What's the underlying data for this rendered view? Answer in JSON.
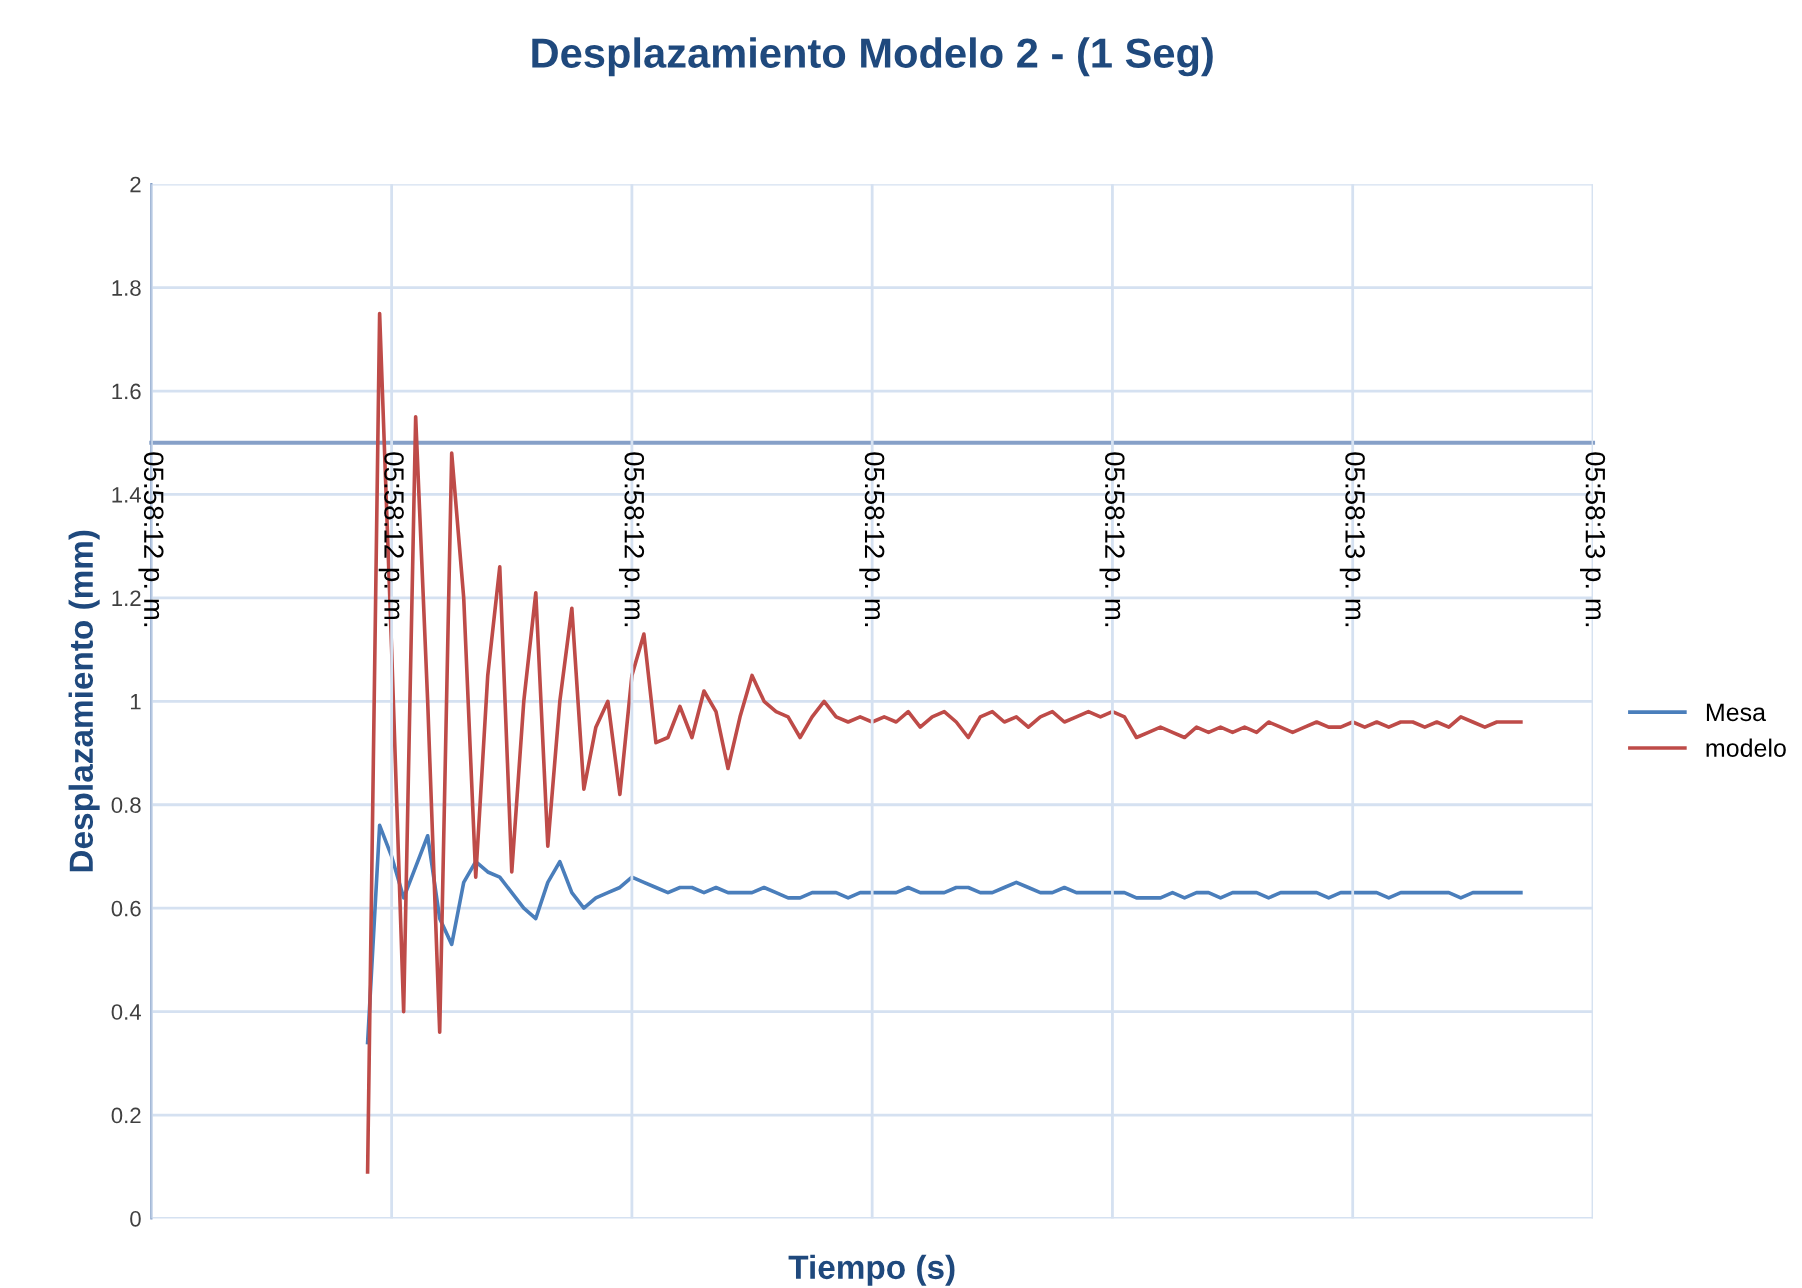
{
  "chart_data": {
    "type": "line",
    "title": "Desplazamiento Modelo 2 - (1 Seg)",
    "xlabel": "Tiempo (s)",
    "ylabel": "Desplazamiento (mm)",
    "categories": [
      "05:58:12 p. m.",
      null,
      null,
      null,
      null,
      null,
      null,
      null,
      null,
      null,
      null,
      null,
      null,
      null,
      null,
      null,
      null,
      null,
      null,
      null,
      "05:58:12 p. m.",
      null,
      null,
      null,
      null,
      null,
      null,
      null,
      null,
      null,
      null,
      null,
      null,
      null,
      null,
      null,
      null,
      null,
      null,
      null,
      "05:58:12 p. m.",
      null,
      null,
      null,
      null,
      null,
      null,
      null,
      null,
      null,
      null,
      null,
      null,
      null,
      null,
      null,
      null,
      null,
      null,
      null,
      "05:58:12 p. m.",
      null,
      null,
      null,
      null,
      null,
      null,
      null,
      null,
      null,
      null,
      null,
      null,
      null,
      null,
      null,
      null,
      null,
      null,
      null,
      "05:58:12 p. m.",
      null,
      null,
      null,
      null,
      null,
      null,
      null,
      null,
      null,
      null,
      null,
      null,
      null,
      null,
      null,
      null,
      null,
      null,
      null,
      "05:58:13 p. m.",
      null,
      null,
      null,
      null,
      null,
      null,
      null,
      null,
      null,
      null,
      null,
      null,
      null,
      null,
      null,
      null,
      null,
      null,
      null,
      "05:58:13 p. m."
    ],
    "ylim": [
      0,
      2
    ],
    "yticks": [
      0,
      0.2,
      0.4,
      0.6,
      0.8,
      1,
      1.2,
      1.4,
      1.6,
      1.8,
      2
    ],
    "grid": true,
    "legend": "right",
    "marker": "none",
    "line_style": "solid",
    "series": [
      {
        "name": "Mesa",
        "color": "#4a7ebb",
        "values": [
          null,
          null,
          null,
          null,
          null,
          null,
          null,
          null,
          null,
          null,
          null,
          null,
          null,
          null,
          null,
          null,
          null,
          null,
          0.34,
          0.76,
          0.7,
          0.62,
          0.68,
          0.74,
          0.58,
          0.53,
          0.65,
          0.69,
          0.67,
          0.66,
          0.63,
          0.6,
          0.58,
          0.65,
          0.69,
          0.63,
          0.6,
          0.62,
          0.63,
          0.64,
          0.66,
          0.65,
          0.64,
          0.63,
          0.64,
          0.64,
          0.63,
          0.64,
          0.63,
          0.63,
          0.63,
          0.64,
          0.63,
          0.62,
          0.62,
          0.63,
          0.63,
          0.63,
          0.62,
          0.63,
          0.63,
          0.63,
          0.63,
          0.64,
          0.63,
          0.63,
          0.63,
          0.64,
          0.64,
          0.63,
          0.63,
          0.64,
          0.65,
          0.64,
          0.63,
          0.63,
          0.64,
          0.63,
          0.63,
          0.63,
          0.63,
          0.63,
          0.62,
          0.62,
          0.62,
          0.63,
          0.62,
          0.63,
          0.63,
          0.62,
          0.63,
          0.63,
          0.63,
          0.62,
          0.63,
          0.63,
          0.63,
          0.63,
          0.62,
          0.63,
          0.63,
          0.63,
          0.63,
          0.62,
          0.63,
          0.63,
          0.63,
          0.63,
          0.63,
          0.62,
          0.63,
          0.63,
          0.63,
          0.63,
          0.63,
          null,
          null,
          null,
          null,
          null,
          null
        ]
      },
      {
        "name": "modelo",
        "color": "#be4b48",
        "values": [
          null,
          null,
          null,
          null,
          null,
          null,
          null,
          null,
          null,
          null,
          null,
          null,
          null,
          null,
          null,
          null,
          null,
          null,
          0.09,
          1.75,
          1.1,
          0.4,
          1.55,
          1.0,
          0.36,
          1.48,
          1.2,
          0.66,
          1.05,
          1.26,
          0.67,
          1.0,
          1.21,
          0.72,
          1.0,
          1.18,
          0.83,
          0.95,
          1.0,
          0.82,
          1.05,
          1.13,
          0.92,
          0.93,
          0.99,
          0.93,
          1.02,
          0.98,
          0.87,
          0.97,
          1.05,
          1.0,
          0.98,
          0.97,
          0.93,
          0.97,
          1.0,
          0.97,
          0.96,
          0.97,
          0.96,
          0.97,
          0.96,
          0.98,
          0.95,
          0.97,
          0.98,
          0.96,
          0.93,
          0.97,
          0.98,
          0.96,
          0.97,
          0.95,
          0.97,
          0.98,
          0.96,
          0.97,
          0.98,
          0.97,
          0.98,
          0.97,
          0.93,
          0.94,
          0.95,
          0.94,
          0.93,
          0.95,
          0.94,
          0.95,
          0.94,
          0.95,
          0.94,
          0.96,
          0.95,
          0.94,
          0.95,
          0.96,
          0.95,
          0.95,
          0.96,
          0.95,
          0.96,
          0.95,
          0.96,
          0.96,
          0.95,
          0.96,
          0.95,
          0.97,
          0.96,
          0.95,
          0.96,
          0.96,
          0.96,
          null,
          null,
          null,
          null,
          null,
          null
        ]
      }
    ]
  }
}
